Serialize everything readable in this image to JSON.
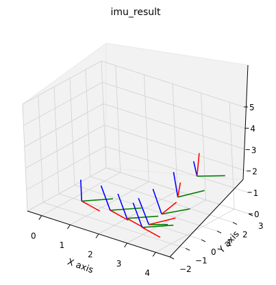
{
  "chart_data": {
    "type": "line3d",
    "title": "imu_result",
    "xlabel": "X axis",
    "ylabel": "Y axis",
    "zlabel": "",
    "xlim": [
      -0.5,
      4.5
    ],
    "ylim": [
      -2,
      3
    ],
    "zlim": [
      0,
      5
    ],
    "x_ticks": [
      "0",
      "1",
      "2",
      "3",
      "4"
    ],
    "y_ticks": [
      "−2",
      "−1",
      "0",
      "1",
      "2",
      "3"
    ],
    "z_ticks": [
      "0",
      "1",
      "2",
      "3",
      "4",
      "5"
    ],
    "grid": true,
    "axis_colors": {
      "x": "#ff0000",
      "y": "#008000",
      "z": "#0000ff"
    },
    "frames": [
      {
        "origin": [
          0.3,
          0.0,
          0.0
        ],
        "x": [
          0.8,
          -0.3,
          0.0
        ],
        "y": [
          0.6,
          0.9,
          0.0
        ],
        "z": [
          0.0,
          0.0,
          1.0
        ]
      },
      {
        "origin": [
          1.3,
          0.0,
          0.0
        ],
        "x": [
          0.8,
          -0.3,
          0.0
        ],
        "y": [
          0.6,
          0.9,
          0.0
        ],
        "z": [
          -0.4,
          0.2,
          0.9
        ]
      },
      {
        "origin": [
          2.0,
          -0.2,
          0.0
        ],
        "x": [
          0.8,
          -0.3,
          0.0
        ],
        "y": [
          0.6,
          0.9,
          0.0
        ],
        "z": [
          -0.4,
          0.2,
          0.9
        ]
      },
      {
        "origin": [
          2.7,
          -0.5,
          0.0
        ],
        "x": [
          0.8,
          -0.3,
          0.0
        ],
        "y": [
          0.6,
          0.9,
          0.0
        ],
        "z": [
          -0.4,
          0.2,
          0.9
        ]
      },
      {
        "origin": [
          3.0,
          -0.6,
          0.3
        ],
        "x": [
          0.5,
          0.8,
          0.2
        ],
        "y": [
          0.5,
          0.3,
          0.1
        ],
        "z": [
          -0.5,
          0.3,
          0.9
        ]
      },
      {
        "origin": [
          3.3,
          -0.3,
          0.8
        ],
        "x": [
          0.2,
          0.6,
          0.4
        ],
        "y": [
          0.5,
          0.9,
          0.1
        ],
        "z": [
          -0.5,
          0.4,
          0.8
        ]
      },
      {
        "origin": [
          3.5,
          0.4,
          1.4
        ],
        "x": [
          0.0,
          0.2,
          0.6
        ],
        "y": [
          0.5,
          0.8,
          0.2
        ],
        "z": [
          -0.4,
          0.5,
          0.8
        ]
      },
      {
        "origin": [
          3.7,
          1.3,
          2.1
        ],
        "x": [
          0.0,
          0.2,
          1.0
        ],
        "y": [
          0.6,
          0.7,
          0.0
        ],
        "z": [
          -0.5,
          0.7,
          0.2
        ]
      }
    ]
  }
}
